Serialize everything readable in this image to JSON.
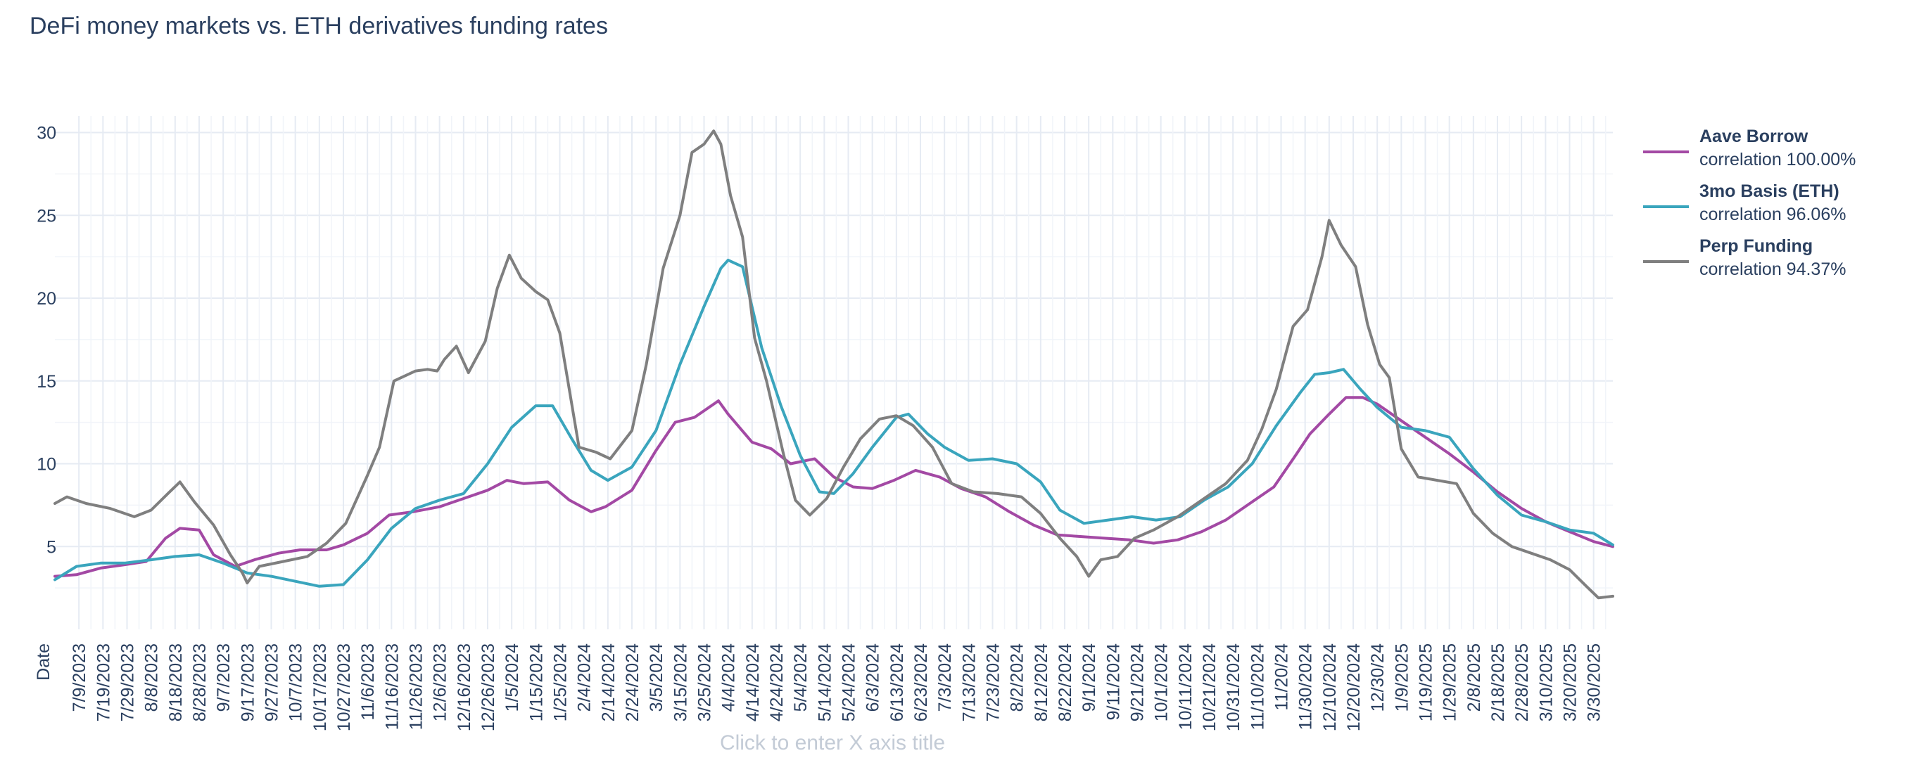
{
  "chart_data": {
    "type": "line",
    "title": "DeFi money markets vs. ETH derivatives funding rates",
    "xlabel": "Click to enter X axis title",
    "ylabel": "",
    "x_start_label": "Date",
    "x_ticks": [
      "7/9/2023",
      "7/19/2023",
      "7/29/2023",
      "8/8/2023",
      "8/18/2023",
      "8/28/2023",
      "9/7/2023",
      "9/17/2023",
      "9/27/2023",
      "10/7/2023",
      "10/17/2023",
      "10/27/2023",
      "11/6/2023",
      "11/16/2023",
      "11/26/2023",
      "12/6/2023",
      "12/16/2023",
      "12/26/2023",
      "1/5/2024",
      "1/15/2024",
      "1/25/2024",
      "2/4/2024",
      "2/14/2024",
      "2/24/2024",
      "3/5/2024",
      "3/15/2024",
      "3/25/2024",
      "4/4/2024",
      "4/14/2024",
      "4/24/2024",
      "5/4/2024",
      "5/14/2024",
      "5/24/2024",
      "6/3/2024",
      "6/13/2024",
      "6/23/2024",
      "7/3/2024",
      "7/13/2024",
      "7/23/2024",
      "8/2/2024",
      "8/12/2024",
      "8/22/2024",
      "9/1/2024",
      "9/11/2024",
      "9/21/2024",
      "10/1/2024",
      "10/11/2024",
      "10/21/2024",
      "10/31/2024",
      "11/10/2024",
      "11/20/24",
      "11/30/2024",
      "12/10/2024",
      "12/20/2024",
      "12/30/24",
      "1/9/2025",
      "1/19/2025",
      "1/29/2025",
      "2/8/2025",
      "2/18/2025",
      "2/28/2025",
      "3/10/2025",
      "3/20/2025",
      "3/30/2025"
    ],
    "xlim": [
      "2023-06-29",
      "2025-04-07"
    ],
    "ylim": [
      0,
      31
    ],
    "y_ticks": [
      5,
      10,
      15,
      20,
      25,
      30
    ],
    "grid": true,
    "legend_position": "right",
    "series": [
      {
        "name": "Aave Borrow",
        "legend_sub": "correlation 100.00%",
        "color": "#a349a4",
        "x": [
          "2023-06-29",
          "2023-07-08",
          "2023-07-18",
          "2023-07-28",
          "2023-08-06",
          "2023-08-14",
          "2023-08-20",
          "2023-08-28",
          "2023-09-03",
          "2023-09-12",
          "2023-09-20",
          "2023-09-30",
          "2023-10-09",
          "2023-10-20",
          "2023-10-27",
          "2023-11-06",
          "2023-11-15",
          "2023-11-25",
          "2023-12-06",
          "2023-12-16",
          "2023-12-26",
          "2024-01-03",
          "2024-01-10",
          "2024-01-20",
          "2024-01-29",
          "2024-02-07",
          "2024-02-13",
          "2024-02-24",
          "2024-03-05",
          "2024-03-13",
          "2024-03-21",
          "2024-03-31",
          "2024-04-04",
          "2024-04-14",
          "2024-04-22",
          "2024-04-30",
          "2024-05-10",
          "2024-05-18",
          "2024-05-26",
          "2024-06-03",
          "2024-06-12",
          "2024-06-21",
          "2024-07-01",
          "2024-07-10",
          "2024-07-20",
          "2024-07-30",
          "2024-08-09",
          "2024-08-19",
          "2024-08-29",
          "2024-09-08",
          "2024-09-18",
          "2024-09-28",
          "2024-10-08",
          "2024-10-18",
          "2024-10-28",
          "2024-11-07",
          "2024-11-17",
          "2024-11-26",
          "2024-12-02",
          "2024-12-10",
          "2024-12-17",
          "2024-12-24",
          "2024-12-30",
          "2025-01-09",
          "2025-01-19",
          "2025-01-29",
          "2025-02-08",
          "2025-02-18",
          "2025-02-28",
          "2025-03-10",
          "2025-03-20",
          "2025-03-30",
          "2025-04-07"
        ],
        "values": [
          3.2,
          3.3,
          3.7,
          3.9,
          4.1,
          5.5,
          6.1,
          6.0,
          4.5,
          3.8,
          4.2,
          4.6,
          4.8,
          4.8,
          5.1,
          5.8,
          6.9,
          7.1,
          7.4,
          7.9,
          8.4,
          9.0,
          8.8,
          8.9,
          7.8,
          7.1,
          7.4,
          8.4,
          10.8,
          12.5,
          12.8,
          13.8,
          13.0,
          11.3,
          10.9,
          10.0,
          10.3,
          9.2,
          8.6,
          8.5,
          9.0,
          9.6,
          9.2,
          8.5,
          8.0,
          7.1,
          6.3,
          5.7,
          5.6,
          5.5,
          5.4,
          5.2,
          5.4,
          5.9,
          6.6,
          7.6,
          8.6,
          10.5,
          11.8,
          13.0,
          14.0,
          14.0,
          13.6,
          12.6,
          11.6,
          10.6,
          9.5,
          8.3,
          7.3,
          6.5,
          5.9,
          5.3,
          5.0
        ]
      },
      {
        "name": "3mo Basis (ETH)",
        "legend_sub": "correlation 96.06%",
        "color": "#3aa5bd",
        "x": [
          "2023-06-29",
          "2023-07-08",
          "2023-07-18",
          "2023-07-28",
          "2023-08-08",
          "2023-08-18",
          "2023-08-28",
          "2023-09-07",
          "2023-09-17",
          "2023-09-27",
          "2023-10-07",
          "2023-10-17",
          "2023-10-27",
          "2023-11-06",
          "2023-11-16",
          "2023-11-26",
          "2023-12-06",
          "2023-12-16",
          "2023-12-26",
          "2024-01-05",
          "2024-01-15",
          "2024-01-22",
          "2024-01-30",
          "2024-02-07",
          "2024-02-14",
          "2024-02-24",
          "2024-03-05",
          "2024-03-15",
          "2024-03-25",
          "2024-04-01",
          "2024-04-04",
          "2024-04-10",
          "2024-04-18",
          "2024-04-26",
          "2024-05-04",
          "2024-05-12",
          "2024-05-18",
          "2024-05-26",
          "2024-06-03",
          "2024-06-13",
          "2024-06-18",
          "2024-06-26",
          "2024-07-03",
          "2024-07-13",
          "2024-07-23",
          "2024-08-02",
          "2024-08-12",
          "2024-08-20",
          "2024-08-30",
          "2024-09-09",
          "2024-09-19",
          "2024-09-29",
          "2024-10-09",
          "2024-10-19",
          "2024-10-29",
          "2024-11-08",
          "2024-11-18",
          "2024-11-28",
          "2024-12-04",
          "2024-12-10",
          "2024-12-16",
          "2024-12-23",
          "2024-12-30",
          "2025-01-09",
          "2025-01-19",
          "2025-01-29",
          "2025-02-08",
          "2025-02-18",
          "2025-02-28",
          "2025-03-10",
          "2025-03-20",
          "2025-03-30",
          "2025-04-07"
        ],
        "values": [
          3.0,
          3.8,
          4.0,
          4.0,
          4.2,
          4.4,
          4.5,
          4.0,
          3.4,
          3.2,
          2.9,
          2.6,
          2.7,
          4.2,
          6.1,
          7.3,
          7.8,
          8.2,
          10.0,
          12.2,
          13.5,
          13.5,
          11.5,
          9.6,
          9.0,
          9.8,
          12.0,
          16.0,
          19.5,
          21.8,
          22.3,
          21.9,
          17.0,
          13.5,
          10.5,
          8.3,
          8.2,
          9.4,
          11.0,
          12.8,
          13.0,
          11.8,
          11.0,
          10.2,
          10.3,
          10.0,
          8.9,
          7.2,
          6.4,
          6.6,
          6.8,
          6.6,
          6.8,
          7.8,
          8.6,
          10.0,
          12.3,
          14.3,
          15.4,
          15.5,
          15.7,
          14.5,
          13.4,
          12.2,
          12.0,
          11.6,
          9.7,
          8.1,
          6.9,
          6.5,
          6.0,
          5.8,
          5.1
        ]
      },
      {
        "name": "Perp Funding",
        "legend_sub": "correlation 94.37%",
        "color": "#7f7f7f",
        "x": [
          "2023-06-29",
          "2023-07-04",
          "2023-07-12",
          "2023-07-22",
          "2023-08-01",
          "2023-08-08",
          "2023-08-15",
          "2023-08-20",
          "2023-08-26",
          "2023-09-03",
          "2023-09-10",
          "2023-09-15",
          "2023-09-17",
          "2023-09-22",
          "2023-10-02",
          "2023-10-12",
          "2023-10-20",
          "2023-10-28",
          "2023-11-06",
          "2023-11-11",
          "2023-11-17",
          "2023-11-26",
          "2023-12-01",
          "2023-12-05",
          "2023-12-08",
          "2023-12-13",
          "2023-12-18",
          "2023-12-25",
          "2023-12-30",
          "2024-01-04",
          "2024-01-09",
          "2024-01-15",
          "2024-01-20",
          "2024-01-25",
          "2024-02-02",
          "2024-02-09",
          "2024-02-15",
          "2024-02-24",
          "2024-03-01",
          "2024-03-08",
          "2024-03-15",
          "2024-03-20",
          "2024-03-25",
          "2024-03-29",
          "2024-04-01",
          "2024-04-05",
          "2024-04-10",
          "2024-04-15",
          "2024-04-20",
          "2024-04-27",
          "2024-05-02",
          "2024-05-08",
          "2024-05-15",
          "2024-05-22",
          "2024-05-29",
          "2024-06-06",
          "2024-06-13",
          "2024-06-20",
          "2024-06-28",
          "2024-07-06",
          "2024-07-15",
          "2024-07-25",
          "2024-08-04",
          "2024-08-12",
          "2024-08-20",
          "2024-08-27",
          "2024-09-01",
          "2024-09-06",
          "2024-09-13",
          "2024-09-20",
          "2024-09-28",
          "2024-10-08",
          "2024-10-18",
          "2024-10-28",
          "2024-11-06",
          "2024-11-12",
          "2024-11-18",
          "2024-11-25",
          "2024-12-01",
          "2024-12-07",
          "2024-12-10",
          "2024-12-15",
          "2024-12-21",
          "2024-12-26",
          "2024-12-31",
          "2025-01-04",
          "2025-01-09",
          "2025-01-16",
          "2025-01-24",
          "2025-02-01",
          "2025-02-08",
          "2025-02-16",
          "2025-02-24",
          "2025-03-04",
          "2025-03-12",
          "2025-03-20",
          "2025-03-27",
          "2025-04-01",
          "2025-04-07"
        ],
        "values": [
          7.6,
          8.0,
          7.6,
          7.3,
          6.8,
          7.2,
          8.2,
          8.9,
          7.7,
          6.3,
          4.5,
          3.4,
          2.8,
          3.8,
          4.1,
          4.4,
          5.2,
          6.4,
          9.3,
          11.0,
          15.0,
          15.6,
          15.7,
          15.6,
          16.3,
          17.1,
          15.5,
          17.4,
          20.6,
          22.6,
          21.2,
          20.4,
          19.9,
          17.9,
          11.0,
          10.7,
          10.3,
          12.0,
          16.0,
          21.8,
          25.0,
          28.8,
          29.3,
          30.1,
          29.3,
          26.2,
          23.7,
          17.6,
          15.0,
          10.6,
          7.8,
          6.9,
          7.9,
          9.8,
          11.5,
          12.7,
          12.9,
          12.3,
          11.0,
          8.8,
          8.3,
          8.2,
          8.0,
          7.0,
          5.5,
          4.4,
          3.2,
          4.2,
          4.4,
          5.5,
          6.0,
          6.8,
          7.8,
          8.8,
          10.2,
          12.1,
          14.5,
          18.3,
          19.3,
          22.5,
          24.7,
          23.2,
          21.9,
          18.4,
          16.0,
          15.2,
          10.9,
          9.2,
          9.0,
          8.8,
          7.0,
          5.8,
          5.0,
          4.6,
          4.2,
          3.6,
          2.6,
          1.9,
          2.0
        ]
      }
    ]
  }
}
